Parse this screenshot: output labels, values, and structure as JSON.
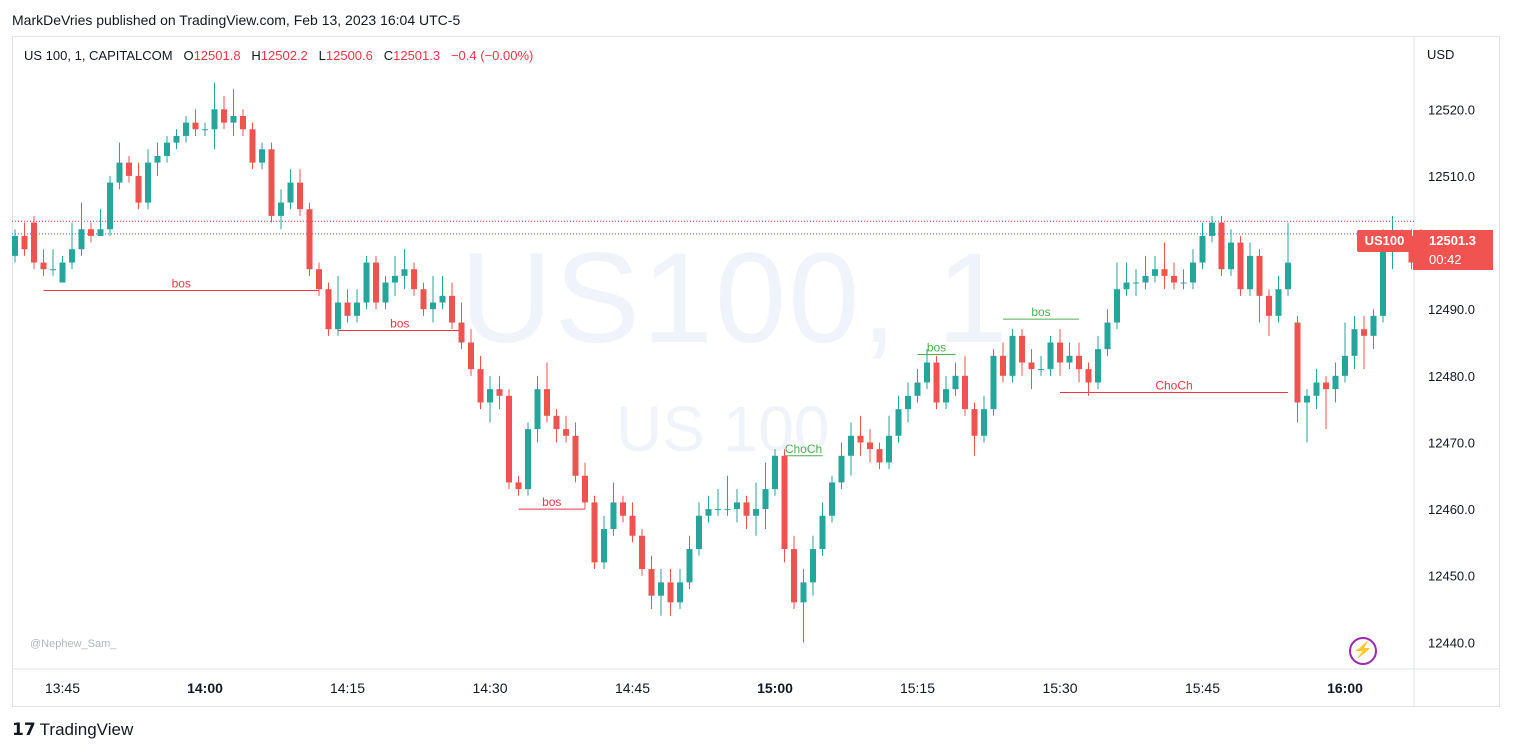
{
  "header": {
    "published": "MarkDeVries published on TradingView.com, Feb 13, 2023 16:04 UTC-5"
  },
  "legend": {
    "symbol": "US 100, 1, CAPITALCOM",
    "o_label": "O",
    "o_value": "12501.8",
    "h_label": "H",
    "h_value": "12502.2",
    "l_label": "L",
    "l_value": "12500.6",
    "c_label": "C",
    "c_value": "12501.3",
    "change": "−0.4 (−0.00%)"
  },
  "watermark": {
    "big": "US100, 1",
    "small": "US 100"
  },
  "author_tag": "@Nephew_Sam_",
  "price_scale": {
    "currency": "USD"
  },
  "last_price": {
    "symbol": "US100",
    "price": "12501.3",
    "countdown": "00:42"
  },
  "footer": {
    "logo_mark": "17",
    "logo_text": "TradingView"
  },
  "colors": {
    "up": "#26a69a",
    "down": "#ef5350",
    "bos_up": "#4caf50",
    "bos_down": "#f23645"
  },
  "chart_data": {
    "type": "candlestick",
    "title": "US 100, 1, CAPITALCOM",
    "interval": "1 minute",
    "ylim": [
      12436,
      12531
    ],
    "y_ticks": [
      "12520.0",
      "12510.0",
      "12490.0",
      "12480.0",
      "12470.0",
      "12460.0",
      "12450.0",
      "12440.0"
    ],
    "x_ticks": [
      {
        "t": 5,
        "label": "13:45",
        "bold": false
      },
      {
        "t": 20,
        "label": "14:00",
        "bold": true
      },
      {
        "t": 35,
        "label": "14:15",
        "bold": false
      },
      {
        "t": 50,
        "label": "14:30",
        "bold": false
      },
      {
        "t": 65,
        "label": "14:45",
        "bold": false
      },
      {
        "t": 80,
        "label": "15:00",
        "bold": true
      },
      {
        "t": 95,
        "label": "15:15",
        "bold": false
      },
      {
        "t": 110,
        "label": "15:30",
        "bold": false
      },
      {
        "t": 125,
        "label": "15:45",
        "bold": false
      },
      {
        "t": 140,
        "label": "16:00",
        "bold": true
      }
    ],
    "reference_lines": [
      {
        "price": 12503.2,
        "color": "#f23645",
        "style": "dotted"
      },
      {
        "price": 12501.3,
        "color": "#2962ff",
        "style": "dotted"
      }
    ],
    "candles": [
      [
        12498,
        12501,
        12497,
        12502
      ],
      [
        12501,
        12499,
        12498,
        12503
      ],
      [
        12503,
        12497,
        12496,
        12504
      ],
      [
        12497,
        12496,
        12495,
        12499
      ],
      [
        12496,
        12496,
        12495,
        12499
      ],
      [
        12494,
        12497,
        12494,
        12498
      ],
      [
        12497,
        12499,
        12496,
        12503
      ],
      [
        12499,
        12502,
        12498,
        12506
      ],
      [
        12502,
        12501,
        12500,
        12503
      ],
      [
        12501,
        12502,
        12501,
        12505
      ],
      [
        12502,
        12509,
        12501,
        12510
      ],
      [
        12509,
        12512,
        12508,
        12515
      ],
      [
        12512,
        12510,
        12509,
        12513
      ],
      [
        12510,
        12506,
        12505,
        12512
      ],
      [
        12506,
        12512,
        12505,
        12514
      ],
      [
        12512,
        12513,
        12510,
        12515
      ],
      [
        12513,
        12515,
        12512,
        12516
      ],
      [
        12515,
        12516,
        12514,
        12517
      ],
      [
        12516,
        12518,
        12515,
        12519
      ],
      [
        12518,
        12517,
        12516,
        12520
      ],
      [
        12517,
        12517,
        12516,
        12518
      ],
      [
        12517,
        12520,
        12514,
        12524
      ],
      [
        12520,
        12518,
        12517,
        12522
      ],
      [
        12518,
        12519,
        12516,
        12523
      ],
      [
        12519,
        12517,
        12516,
        12520
      ],
      [
        12517,
        12512,
        12511,
        12518
      ],
      [
        12512,
        12514,
        12511,
        12515
      ],
      [
        12514,
        12504,
        12503,
        12515
      ],
      [
        12504,
        12506,
        12502,
        12508
      ],
      [
        12506,
        12509,
        12505,
        12511
      ],
      [
        12509,
        12505,
        12504,
        12511
      ],
      [
        12505,
        12496,
        12495,
        12506
      ],
      [
        12496,
        12493,
        12492,
        12497
      ],
      [
        12493,
        12487,
        12486,
        12494
      ],
      [
        12487,
        12491,
        12486,
        12495
      ],
      [
        12491,
        12489,
        12488,
        12493
      ],
      [
        12489,
        12491,
        12488,
        12493
      ],
      [
        12491,
        12497,
        12490,
        12498
      ],
      [
        12497,
        12491,
        12490,
        12498
      ],
      [
        12491,
        12494,
        12490,
        12495
      ],
      [
        12494,
        12495,
        12492,
        12498
      ],
      [
        12495,
        12496,
        12493,
        12499
      ],
      [
        12496,
        12493,
        12492,
        12497
      ],
      [
        12493,
        12490,
        12489,
        12494
      ],
      [
        12490,
        12491,
        12488,
        12495
      ],
      [
        12491,
        12492,
        12490,
        12495
      ],
      [
        12492,
        12488,
        12487,
        12494
      ],
      [
        12488,
        12485,
        12484,
        12491
      ],
      [
        12485,
        12481,
        12480,
        12487
      ],
      [
        12481,
        12476,
        12475,
        12483
      ],
      [
        12476,
        12478,
        12473,
        12480
      ],
      [
        12478,
        12477,
        12475,
        12480
      ],
      [
        12477,
        12464,
        12463,
        12478
      ],
      [
        12464,
        12463,
        12462,
        12465
      ],
      [
        12463,
        12472,
        12462,
        12473
      ],
      [
        12472,
        12478,
        12470,
        12480
      ],
      [
        12478,
        12474,
        12473,
        12482
      ],
      [
        12474,
        12472,
        12470,
        12475
      ],
      [
        12472,
        12471,
        12470,
        12474
      ],
      [
        12471,
        12465,
        12464,
        12473
      ],
      [
        12465,
        12461,
        12460,
        12467
      ],
      [
        12461,
        12452,
        12451,
        12462
      ],
      [
        12452,
        12457,
        12451,
        12459
      ],
      [
        12457,
        12461,
        12456,
        12464
      ],
      [
        12461,
        12459,
        12458,
        12462
      ],
      [
        12459,
        12456,
        12455,
        12461
      ],
      [
        12456,
        12451,
        12450,
        12457
      ],
      [
        12451,
        12447,
        12445,
        12453
      ],
      [
        12447,
        12449,
        12444,
        12451
      ],
      [
        12449,
        12446,
        12444,
        12451
      ],
      [
        12446,
        12449,
        12445,
        12451
      ],
      [
        12449,
        12454,
        12448,
        12456
      ],
      [
        12454,
        12459,
        12453,
        12461
      ],
      [
        12459,
        12460,
        12458,
        12462
      ],
      [
        12460,
        12460,
        12459,
        12463
      ],
      [
        12460,
        12460,
        12459,
        12465
      ],
      [
        12460,
        12461,
        12458,
        12463
      ],
      [
        12461,
        12459,
        12457,
        12462
      ],
      [
        12459,
        12460,
        12456,
        12464
      ],
      [
        12460,
        12463,
        12457,
        12467
      ],
      [
        12463,
        12468,
        12462,
        12469
      ],
      [
        12468,
        12454,
        12452,
        12469
      ],
      [
        12454,
        12446,
        12445,
        12456
      ],
      [
        12446,
        12449,
        12440,
        12451
      ],
      [
        12449,
        12454,
        12447,
        12456
      ],
      [
        12454,
        12459,
        12453,
        12461
      ],
      [
        12459,
        12464,
        12458,
        12465
      ],
      [
        12464,
        12468,
        12463,
        12470
      ],
      [
        12468,
        12471,
        12465,
        12473
      ],
      [
        12471,
        12470,
        12468,
        12474
      ],
      [
        12470,
        12469,
        12467,
        12472
      ],
      [
        12469,
        12467,
        12466,
        12470
      ],
      [
        12467,
        12471,
        12466,
        12474
      ],
      [
        12471,
        12475,
        12470,
        12477
      ],
      [
        12475,
        12477,
        12473,
        12479
      ],
      [
        12477,
        12479,
        12476,
        12481
      ],
      [
        12479,
        12482,
        12478,
        12484
      ],
      [
        12482,
        12476,
        12475,
        12483
      ],
      [
        12476,
        12478,
        12475,
        12480
      ],
      [
        12478,
        12480,
        12477,
        12482
      ],
      [
        12480,
        12475,
        12474,
        12483
      ],
      [
        12475,
        12471,
        12468,
        12476
      ],
      [
        12471,
        12475,
        12470,
        12477
      ],
      [
        12475,
        12483,
        12474,
        12484
      ],
      [
        12483,
        12480,
        12479,
        12485
      ],
      [
        12480,
        12486,
        12479,
        12487
      ],
      [
        12486,
        12482,
        12480,
        12487
      ],
      [
        12482,
        12481,
        12478,
        12484
      ],
      [
        12481,
        12481,
        12480,
        12483
      ],
      [
        12481,
        12485,
        12480,
        12486
      ],
      [
        12485,
        12482,
        12480,
        12487
      ],
      [
        12482,
        12483,
        12481,
        12485
      ],
      [
        12483,
        12481,
        12479,
        12485
      ],
      [
        12481,
        12479,
        12477,
        12482
      ],
      [
        12479,
        12484,
        12478,
        12486
      ],
      [
        12484,
        12488,
        12483,
        12490
      ],
      [
        12488,
        12493,
        12487,
        12497
      ],
      [
        12493,
        12494,
        12492,
        12497
      ],
      [
        12494,
        12494,
        12492,
        12496
      ],
      [
        12494,
        12495,
        12493,
        12498
      ],
      [
        12495,
        12496,
        12494,
        12498
      ],
      [
        12496,
        12495,
        12493,
        12500
      ],
      [
        12495,
        12494,
        12493,
        12497
      ],
      [
        12494,
        12494,
        12493,
        12496
      ],
      [
        12494,
        12497,
        12493,
        12499
      ],
      [
        12497,
        12501,
        12496,
        12503
      ],
      [
        12501,
        12503,
        12500,
        12504
      ],
      [
        12503,
        12496,
        12495,
        12504
      ],
      [
        12496,
        12500,
        12495,
        12502
      ],
      [
        12500,
        12493,
        12492,
        12501
      ],
      [
        12493,
        12498,
        12492,
        12500
      ],
      [
        12498,
        12492,
        12488,
        12499
      ],
      [
        12492,
        12489,
        12486,
        12493
      ],
      [
        12489,
        12493,
        12488,
        12495
      ],
      [
        12493,
        12497,
        12492,
        12503
      ],
      [
        12488,
        12476,
        12473,
        12489
      ],
      [
        12476,
        12477,
        12470,
        12478
      ],
      [
        12477,
        12479,
        12475,
        12481
      ],
      [
        12479,
        12478,
        12472,
        12480
      ],
      [
        12478,
        12480,
        12476,
        12482
      ],
      [
        12480,
        12483,
        12479,
        12488
      ],
      [
        12483,
        12487,
        12481,
        12489
      ],
      [
        12487,
        12486,
        12481,
        12489
      ],
      [
        12486,
        12489,
        12484,
        12490
      ],
      [
        12489,
        12501,
        12488,
        12502
      ],
      [
        12501,
        12501,
        12496,
        12504
      ],
      [
        12501,
        12501,
        12500,
        12502
      ],
      [
        12501,
        12497,
        12496,
        12502
      ],
      [
        12497,
        12501,
        12496,
        12502
      ]
    ],
    "annotations": [
      {
        "text": "bos",
        "color": "#f23645",
        "t1": 3,
        "t2": 32,
        "price": 12492.8
      },
      {
        "text": "bos",
        "color": "#f23645",
        "t1": 34,
        "t2": 47,
        "price": 12486.8
      },
      {
        "text": "bos",
        "color": "#f23645",
        "t1": 53,
        "t2": 60,
        "price": 12460.0
      },
      {
        "text": "ChoCh",
        "color": "#4caf50",
        "t1": 81,
        "t2": 85,
        "price": 12468.0
      },
      {
        "text": "bos",
        "color": "#4caf50",
        "t1": 95,
        "t2": 99,
        "price": 12483.2
      },
      {
        "text": "bos",
        "color": "#4caf50",
        "t1": 104,
        "t2": 112,
        "price": 12488.5
      },
      {
        "text": "ChoCh",
        "color": "#f23645",
        "t1": 110,
        "t2": 134,
        "price": 12477.5
      }
    ]
  }
}
